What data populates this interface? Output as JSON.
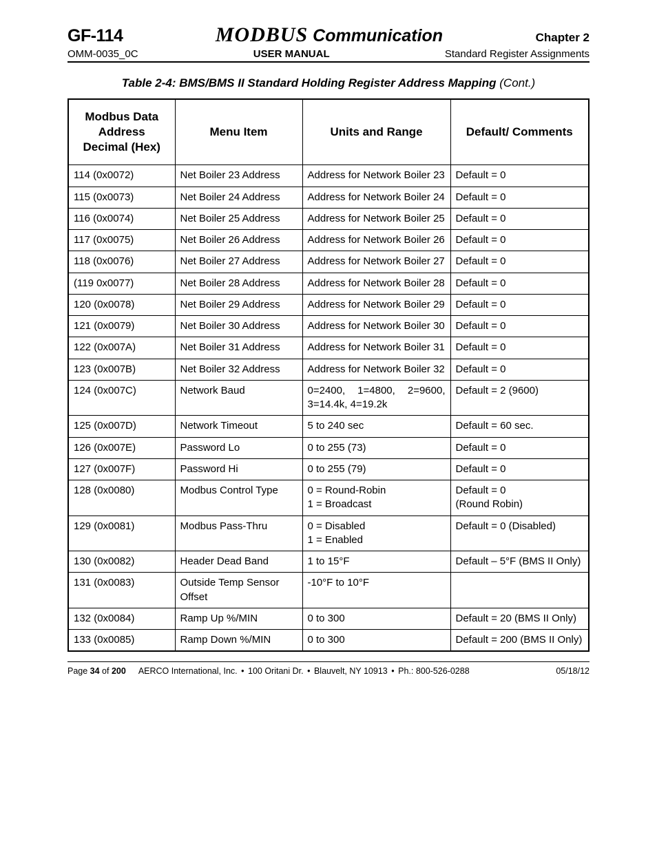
{
  "header": {
    "left": "GF-114",
    "modbus": "MODBUS",
    "comm": " Communication",
    "right": "Chapter 2",
    "sub_left": "OMM-0035_0C",
    "sub_center": "USER MANUAL",
    "sub_right": "Standard Register Assignments"
  },
  "table": {
    "title_main": "Table 2-4:  BMS/BMS II Standard Holding Register Address Mapping ",
    "title_cont": "(Cont.)",
    "columns": {
      "addr": "Modbus Data Address Decimal (Hex)",
      "menu": "Menu Item",
      "units": "Units and Range",
      "def": "Default/ Comments"
    },
    "rows": [
      {
        "addr": "114 (0x0072)",
        "menu": "Net Boiler 23 Address",
        "units": "Address for Network Boiler 23",
        "def": "Default = 0",
        "units_justify": true
      },
      {
        "addr": "115 (0x0073)",
        "menu": "Net Boiler 24 Address",
        "units": "Address for Network Boiler 24",
        "def": "Default = 0",
        "units_justify": true
      },
      {
        "addr": "116 (0x0074)",
        "menu": "Net Boiler 25 Address",
        "units": "Address for Network Boiler 25",
        "def": "Default = 0",
        "units_justify": true
      },
      {
        "addr": "117 (0x0075)",
        "menu": "Net Boiler 26 Address",
        "units": "Address for Network Boiler 26",
        "def": "Default = 0",
        "units_justify": true
      },
      {
        "addr": "118 (0x0076)",
        "menu": "Net Boiler 27 Address",
        "units": "Address for Network Boiler 27",
        "def": "Default = 0",
        "units_justify": true
      },
      {
        "addr": "(119 0x0077)",
        "menu": "Net Boiler 28 Address",
        "units": "Address for Network Boiler 28",
        "def": "Default = 0",
        "units_justify": true
      },
      {
        "addr": "120 (0x0078)",
        "menu": "Net Boiler 29 Address",
        "units": "Address for Network Boiler 29",
        "def": "Default = 0",
        "units_justify": true
      },
      {
        "addr": "121 (0x0079)",
        "menu": "Net Boiler 30 Address",
        "units": "Address for Network Boiler 30",
        "def": "Default = 0",
        "units_justify": true
      },
      {
        "addr": "122 (0x007A)",
        "menu": "Net Boiler 31 Address",
        "units": "Address for Network Boiler 31",
        "def": "Default = 0",
        "units_justify": true
      },
      {
        "addr": "123 (0x007B)",
        "menu": "Net Boiler 32 Address",
        "units": "Address for Network Boiler 32",
        "def": "Default = 0",
        "units_justify": true
      },
      {
        "addr": "124 (0x007C)",
        "menu": "Network Baud",
        "units": "0=2400, 1=4800, 2=9600, 3=14.4k, 4=19.2k",
        "def": "Default = 2 (9600)",
        "units_justify": true
      },
      {
        "addr": "125 (0x007D)",
        "menu": "Network Timeout",
        "units": "5 to 240 sec",
        "def": "Default = 60 sec."
      },
      {
        "addr": "126 (0x007E)",
        "menu": "Password Lo",
        "units": "0 to 255   (73)",
        "def": "Default = 0"
      },
      {
        "addr": "127 (0x007F)",
        "menu": "Password Hi",
        "units": "0 to 255   (79)",
        "def": "Default = 0"
      },
      {
        "addr": "128 (0x0080)",
        "menu": "Modbus Control Type",
        "units": "0 = Round-Robin\n1 = Broadcast",
        "def": "Default = 0\n(Round Robin)"
      },
      {
        "addr": "129 (0x0081)",
        "menu": "Modbus Pass-Thru",
        "units": "0 = Disabled\n1 = Enabled",
        "def": "Default = 0 (Disabled)"
      },
      {
        "addr": "130 (0x0082)",
        "menu": "Header Dead Band",
        "units": "1 to 15°F",
        "def": "Default – 5°F (BMS II Only)"
      },
      {
        "addr": "131 (0x0083)",
        "menu": "Outside Temp Sensor Offset",
        "units": "-10°F to 10°F",
        "def": ""
      },
      {
        "addr": "132 (0x0084)",
        "menu": "Ramp Up %/MIN",
        "units": "0 to 300",
        "def": "Default = 20 (BMS II Only)"
      },
      {
        "addr": "133 (0x0085)",
        "menu": "Ramp Down %/MIN",
        "units": "0 to 300",
        "def": "Default = 200 (BMS II Only)"
      }
    ]
  },
  "footer": {
    "page_prefix": "Page ",
    "page_num": "34",
    "page_of": " of ",
    "page_total": "200",
    "company": "AERCO International, Inc.",
    "addr1": "100 Oritani Dr.",
    "addr2": "Blauvelt, NY 10913",
    "phone": "Ph.: 800-526-0288",
    "date": "05/18/12"
  }
}
